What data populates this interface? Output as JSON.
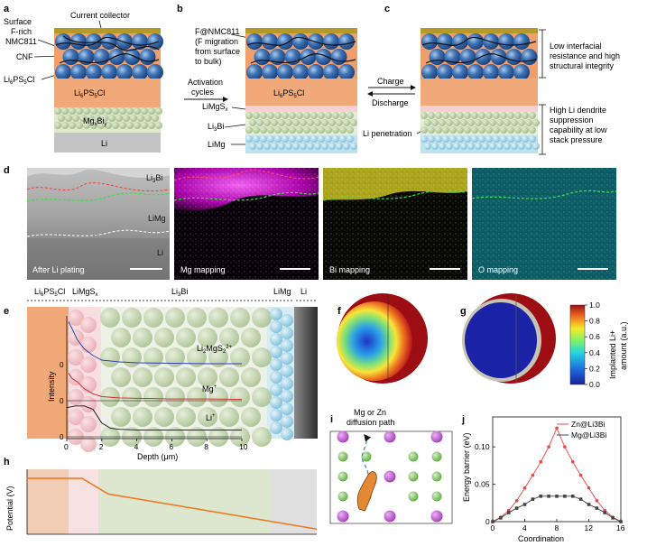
{
  "panels": {
    "a": "a",
    "b": "b",
    "c": "c",
    "d": "d",
    "e": "e",
    "f": "f",
    "g": "g",
    "h": "h",
    "i": "i",
    "j": "j"
  },
  "panel_a": {
    "surface_label": [
      "Surface",
      "F-rich",
      "NMC811"
    ],
    "current_collector": "Current collector",
    "cnf": "CNF",
    "li6ps5cl_left": "Li",
    "li6ps5cl_left_sub1": "6",
    "li6ps5cl_left_mid": "PS",
    "li6ps5cl_left_sub2": "5",
    "li6ps5cl_left_end": "Cl",
    "electrolyte_layer": "Li6PS5Cl",
    "mgbi_layer": "Mg-Bi",
    "li_layer": "Li"
  },
  "panel_b": {
    "fnmc": [
      "F@NMC811",
      "(F migration",
      "from surface",
      "to bulk)"
    ],
    "activation": [
      "Activation",
      "cycles"
    ],
    "electrolyte_layer": "Li6PS5Cl",
    "limgs": "LiMgSx",
    "li3bi": "Li3Bi",
    "limg": "LiMg"
  },
  "panel_c": {
    "charge": "Charge",
    "discharge": "Discharge",
    "li_penetration": "Li penetration",
    "top_note": [
      "Low interfacial",
      "resistance and high",
      "structural integrity"
    ],
    "bottom_note": [
      "High Li dendrite",
      "suppression",
      "capability at low",
      "stack pressure"
    ]
  },
  "panel_d": {
    "li3bi": "Li3Bi",
    "limg": "LiMg",
    "li": "Li",
    "captions": [
      "After Li plating",
      "Mg mapping",
      "Bi mapping",
      "O mapping"
    ]
  },
  "panel_e": {
    "regions": [
      "Li6PS5Cl",
      "LiMgSx",
      "Li3Bi",
      "LiMg",
      "Li"
    ],
    "ylabel": "Intensity",
    "xlabel": "Depth (μm)",
    "signals": [
      "Li2MgS2+",
      "Mg+",
      "Li+"
    ]
  },
  "panel_fg": {
    "colorbar_label": [
      "Implanted Li+",
      "amount (a.u.)"
    ]
  },
  "panel_i": {
    "path_label": [
      "Mg or Zn",
      "diffusion path"
    ]
  },
  "colors": {
    "electrolyte": "#f1a97a",
    "collector": "#b59a2a",
    "li": "#c4c4c4",
    "zn_line": "#e84848",
    "mg_line": "#444444",
    "map_mg": "#e21de0",
    "map_bi": "#d8d020",
    "map_o": "#18c8d8"
  },
  "chart_data": [
    {
      "type": "line",
      "panel": "e",
      "xlabel": "Depth (μm)",
      "ylabel": "Intensity",
      "xlim": [
        0,
        10
      ],
      "x_ticks": [
        0,
        2,
        4,
        6,
        8,
        10
      ],
      "series": [
        {
          "name": "Li2MgS2+",
          "x": [
            0.1,
            0.3,
            0.6,
            1.0,
            1.5,
            2.0,
            3.0,
            4.0,
            6.0,
            8.0,
            10.0
          ],
          "y": [
            0.95,
            0.8,
            0.55,
            0.35,
            0.2,
            0.1,
            0.06,
            0.04,
            0.03,
            0.02,
            0.02
          ]
        },
        {
          "name": "Mg+",
          "x": [
            0.1,
            0.3,
            0.6,
            1.0,
            1.5,
            2.0,
            3.0,
            4.0,
            6.0,
            8.0,
            10.0
          ],
          "y": [
            0.8,
            0.65,
            0.55,
            0.35,
            0.2,
            0.12,
            0.08,
            0.07,
            0.05,
            0.05,
            0.04
          ]
        },
        {
          "name": "Li+",
          "x": [
            0,
            0.5,
            1.0,
            1.5,
            2.0,
            2.5,
            3.0,
            4.0,
            6.0,
            8.0,
            10.0
          ],
          "y": [
            0.85,
            0.9,
            0.9,
            0.8,
            0.4,
            0.25,
            0.22,
            0.2,
            0.2,
            0.2,
            0.2
          ]
        }
      ]
    },
    {
      "type": "line",
      "panel": "h",
      "ylabel": "Potential (V)",
      "series": [
        {
          "name": "",
          "x": [
            0,
            0.19,
            0.28,
            1.0
          ],
          "y": [
            0.86,
            0.86,
            0.62,
            0.08
          ]
        }
      ]
    },
    {
      "type": "line",
      "panel": "j",
      "xlabel": "Coordination",
      "ylabel": "Energy barrier (eV)",
      "xlim": [
        0,
        16
      ],
      "ylim": [
        0,
        0.14
      ],
      "x_ticks": [
        0,
        4,
        8,
        12,
        16
      ],
      "y_ticks": [
        0,
        0.05,
        0.1
      ],
      "legend": "top-right",
      "series": [
        {
          "name": "Zn@Li3Bi",
          "x": [
            0,
            1,
            2,
            3,
            4,
            5,
            6,
            7,
            8,
            9,
            10,
            11,
            12,
            13,
            14,
            15,
            16
          ],
          "y": [
            0,
            0.006,
            0.015,
            0.028,
            0.045,
            0.062,
            0.08,
            0.1,
            0.125,
            0.1,
            0.08,
            0.062,
            0.045,
            0.028,
            0.015,
            0.006,
            0
          ]
        },
        {
          "name": "Mg@Li3Bi",
          "x": [
            0,
            1,
            2,
            3,
            4,
            5,
            6,
            7,
            8,
            9,
            10,
            11,
            12,
            13,
            14,
            15,
            16
          ],
          "y": [
            0,
            0.005,
            0.012,
            0.018,
            0.023,
            0.03,
            0.034,
            0.034,
            0.034,
            0.034,
            0.034,
            0.03,
            0.023,
            0.018,
            0.012,
            0.005,
            0
          ]
        }
      ]
    },
    {
      "type": "heatmap",
      "panel": "f-g colorbar",
      "ticks": [
        0,
        0.2,
        0.4,
        0.6,
        0.8,
        1.0
      ],
      "range": [
        0,
        1.0
      ]
    }
  ]
}
